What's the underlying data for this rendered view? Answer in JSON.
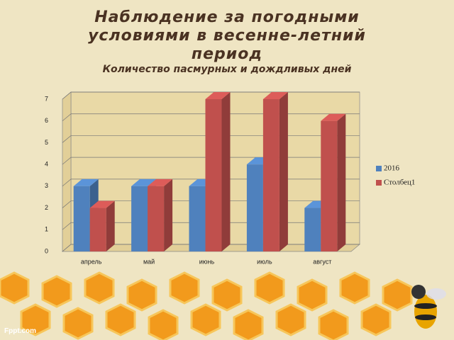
{
  "title": "Наблюдение за погодными условиями в весенне-летний период",
  "watermark": "Fppt.com",
  "chart_data": {
    "type": "bar3d",
    "title": "Количество пасмурных и дождливых дней",
    "categories": [
      "апрель",
      "май",
      "июнь",
      "июль",
      "август"
    ],
    "series": [
      {
        "name": "2016",
        "color": "#4f81bd",
        "values": [
          3,
          3,
          3,
          4,
          2
        ]
      },
      {
        "name": "Столбец1",
        "color": "#c0504d",
        "values": [
          2,
          3,
          7,
          7,
          6
        ]
      }
    ],
    "ylim": [
      0,
      7
    ],
    "yticks": [
      0,
      1,
      2,
      3,
      4,
      5,
      6,
      7
    ],
    "grid": true,
    "legend": "right"
  }
}
